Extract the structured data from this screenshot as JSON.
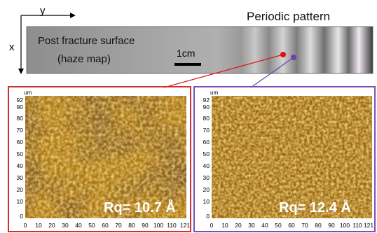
{
  "axes": {
    "y_label": "y",
    "x_label": "x"
  },
  "title": "Periodic pattern",
  "strip": {
    "label_line1": "Post fracture surface",
    "label_line2": "(haze map)",
    "scale_label": "1cm"
  },
  "markers": {
    "left_color": "#e01010",
    "right_color": "#7040b0"
  },
  "panels": [
    {
      "border_color": "#d03030",
      "unit": "um",
      "y_ticks": [
        "92",
        "90",
        "80",
        "70",
        "60",
        "50",
        "40",
        "30",
        "20",
        "10",
        "0"
      ],
      "x_ticks": [
        "0",
        "10",
        "20",
        "30",
        "40",
        "50",
        "60",
        "70",
        "80",
        "90",
        "100",
        "110",
        "121"
      ],
      "annotation": "Rq= 10.7 Å"
    },
    {
      "border_color": "#7a50b8",
      "unit": "um",
      "y_ticks": [
        "92",
        "90",
        "80",
        "70",
        "60",
        "50",
        "40",
        "30",
        "20",
        "10",
        "0"
      ],
      "x_ticks": [
        "0",
        "10",
        "20",
        "30",
        "40",
        "50",
        "60",
        "70",
        "80",
        "90",
        "100",
        "110",
        "121"
      ],
      "annotation": "Rq= 12.4 Å"
    }
  ]
}
